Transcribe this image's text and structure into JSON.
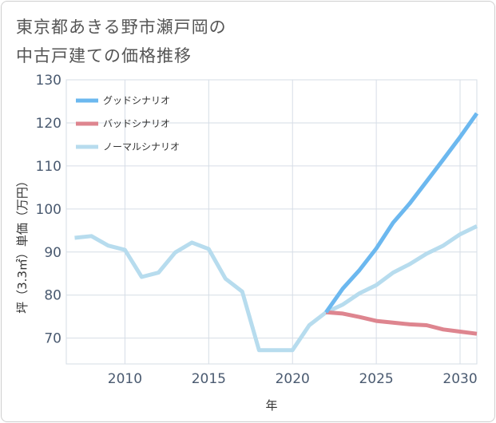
{
  "chart_data": {
    "type": "line",
    "title_lines": [
      "東京都あきる野市瀬戸岡の",
      "中古戸建ての価格推移"
    ],
    "xlabel": "年",
    "ylabel": "坪（3.3㎡）単価（万円）",
    "xlim": [
      2006.5,
      2031
    ],
    "ylim": [
      64,
      130
    ],
    "x_ticks": [
      2010,
      2015,
      2020,
      2025,
      2030
    ],
    "y_ticks": [
      70,
      80,
      90,
      100,
      110,
      120,
      130
    ],
    "legend_position": "top-left",
    "series": [
      {
        "name": "グッドシナリオ",
        "color": "#6cb8ef",
        "x": [
          2022,
          2023,
          2024,
          2025,
          2026,
          2027,
          2028,
          2029,
          2030,
          2031
        ],
        "y": [
          76,
          81.5,
          85.8,
          90.8,
          96.8,
          101.3,
          106.4,
          111.5,
          116.7,
          122.2
        ]
      },
      {
        "name": "バッドシナリオ",
        "color": "#de858f",
        "x": [
          2022,
          2023,
          2024,
          2025,
          2026,
          2027,
          2028,
          2029,
          2030,
          2031
        ],
        "y": [
          76,
          75.7,
          74.9,
          74,
          73.6,
          73.2,
          73,
          72,
          71.5,
          71
        ]
      },
      {
        "name": "ノーマルシナリオ",
        "color": "#b7dcee",
        "x": [
          2007,
          2008,
          2009,
          2010,
          2011,
          2012,
          2013,
          2014,
          2015,
          2016,
          2017,
          2018,
          2019,
          2020,
          2021,
          2022,
          2023,
          2024,
          2025,
          2026,
          2027,
          2028,
          2029,
          2030,
          2031
        ],
        "y": [
          93.3,
          93.7,
          91.5,
          90.5,
          84.2,
          85.2,
          89.9,
          92.2,
          90.7,
          83.8,
          80.8,
          67.2,
          67.2,
          67.2,
          73,
          76,
          77.8,
          80.4,
          82.3,
          85.2,
          87.2,
          89.6,
          91.5,
          94.1,
          96
        ]
      }
    ]
  }
}
